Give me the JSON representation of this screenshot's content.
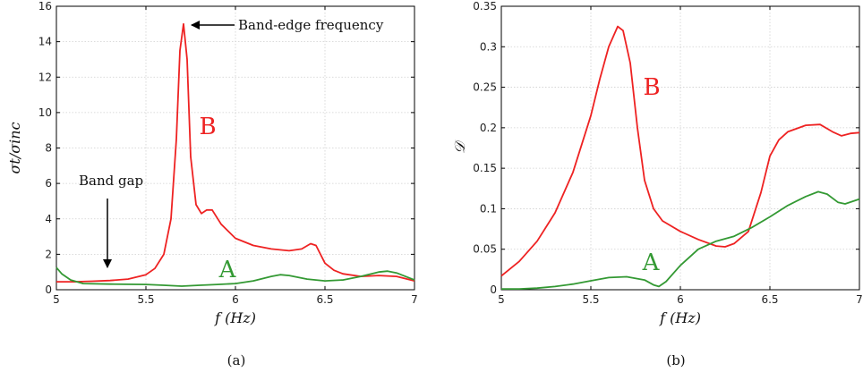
{
  "chart_data": [
    {
      "type": "line",
      "caption": "(a)",
      "xlabel": "f (Hz)",
      "ylabel": "σt/σinc",
      "xlim": [
        5,
        7
      ],
      "ylim": [
        0,
        16
      ],
      "xticks": [
        "5",
        "5.5",
        "6",
        "6.5",
        "7"
      ],
      "yticks": [
        "0",
        "2",
        "4",
        "6",
        "8",
        "10",
        "12",
        "14",
        "16"
      ],
      "grid": true,
      "series": [
        {
          "name": "B",
          "color": "#ee2222",
          "points": [
            [
              5.0,
              0.45
            ],
            [
              5.1,
              0.45
            ],
            [
              5.2,
              0.48
            ],
            [
              5.3,
              0.52
            ],
            [
              5.4,
              0.6
            ],
            [
              5.5,
              0.85
            ],
            [
              5.55,
              1.2
            ],
            [
              5.6,
              2.0
            ],
            [
              5.64,
              4.0
            ],
            [
              5.67,
              8.5
            ],
            [
              5.69,
              13.5
            ],
            [
              5.71,
              15.0
            ],
            [
              5.73,
              13.0
            ],
            [
              5.75,
              7.5
            ],
            [
              5.78,
              4.8
            ],
            [
              5.81,
              4.3
            ],
            [
              5.84,
              4.5
            ],
            [
              5.87,
              4.5
            ],
            [
              5.92,
              3.7
            ],
            [
              6.0,
              2.9
            ],
            [
              6.1,
              2.5
            ],
            [
              6.2,
              2.3
            ],
            [
              6.3,
              2.2
            ],
            [
              6.37,
              2.3
            ],
            [
              6.42,
              2.6
            ],
            [
              6.45,
              2.5
            ],
            [
              6.5,
              1.5
            ],
            [
              6.55,
              1.1
            ],
            [
              6.6,
              0.9
            ],
            [
              6.7,
              0.75
            ],
            [
              6.8,
              0.8
            ],
            [
              6.9,
              0.75
            ],
            [
              7.0,
              0.5
            ]
          ]
        },
        {
          "name": "A",
          "color": "#339933",
          "points": [
            [
              5.0,
              1.25
            ],
            [
              5.03,
              0.9
            ],
            [
              5.08,
              0.55
            ],
            [
              5.15,
              0.35
            ],
            [
              5.3,
              0.32
            ],
            [
              5.5,
              0.3
            ],
            [
              5.6,
              0.25
            ],
            [
              5.7,
              0.2
            ],
            [
              5.8,
              0.25
            ],
            [
              5.9,
              0.3
            ],
            [
              6.0,
              0.35
            ],
            [
              6.1,
              0.5
            ],
            [
              6.2,
              0.75
            ],
            [
              6.25,
              0.85
            ],
            [
              6.3,
              0.8
            ],
            [
              6.4,
              0.6
            ],
            [
              6.5,
              0.5
            ],
            [
              6.6,
              0.55
            ],
            [
              6.7,
              0.75
            ],
            [
              6.8,
              1.0
            ],
            [
              6.85,
              1.05
            ],
            [
              6.9,
              0.95
            ],
            [
              7.0,
              0.55
            ]
          ]
        }
      ],
      "annotations": {
        "band_edge": "Band-edge frequency",
        "band_gap": "Band gap",
        "label_a": "A",
        "label_b": "B"
      }
    },
    {
      "type": "line",
      "caption": "(b)",
      "xlabel": "f (Hz)",
      "ylabel": "𝒟",
      "xlim": [
        5,
        7
      ],
      "ylim": [
        0,
        0.35
      ],
      "xticks": [
        "5",
        "5.5",
        "6",
        "6.5",
        "7"
      ],
      "yticks": [
        "0",
        "0.05",
        "0.1",
        "0.15",
        "0.2",
        "0.25",
        "0.3",
        "0.35"
      ],
      "grid": true,
      "series": [
        {
          "name": "B",
          "color": "#ee2222",
          "points": [
            [
              5.0,
              0.017
            ],
            [
              5.1,
              0.035
            ],
            [
              5.2,
              0.06
            ],
            [
              5.3,
              0.095
            ],
            [
              5.4,
              0.145
            ],
            [
              5.5,
              0.215
            ],
            [
              5.55,
              0.26
            ],
            [
              5.6,
              0.3
            ],
            [
              5.65,
              0.325
            ],
            [
              5.68,
              0.32
            ],
            [
              5.72,
              0.28
            ],
            [
              5.76,
              0.2
            ],
            [
              5.8,
              0.135
            ],
            [
              5.85,
              0.1
            ],
            [
              5.9,
              0.085
            ],
            [
              6.0,
              0.072
            ],
            [
              6.1,
              0.062
            ],
            [
              6.2,
              0.054
            ],
            [
              6.25,
              0.053
            ],
            [
              6.3,
              0.057
            ],
            [
              6.38,
              0.072
            ],
            [
              6.45,
              0.12
            ],
            [
              6.5,
              0.165
            ],
            [
              6.55,
              0.185
            ],
            [
              6.6,
              0.195
            ],
            [
              6.7,
              0.203
            ],
            [
              6.78,
              0.204
            ],
            [
              6.85,
              0.195
            ],
            [
              6.9,
              0.19
            ],
            [
              6.95,
              0.193
            ],
            [
              7.0,
              0.194
            ]
          ]
        },
        {
          "name": "A",
          "color": "#339933",
          "points": [
            [
              5.0,
              0.001
            ],
            [
              5.1,
              0.001
            ],
            [
              5.2,
              0.002
            ],
            [
              5.3,
              0.004
            ],
            [
              5.4,
              0.007
            ],
            [
              5.5,
              0.011
            ],
            [
              5.6,
              0.015
            ],
            [
              5.7,
              0.016
            ],
            [
              5.8,
              0.012
            ],
            [
              5.85,
              0.006
            ],
            [
              5.88,
              0.004
            ],
            [
              5.92,
              0.01
            ],
            [
              6.0,
              0.03
            ],
            [
              6.1,
              0.05
            ],
            [
              6.2,
              0.06
            ],
            [
              6.3,
              0.066
            ],
            [
              6.4,
              0.077
            ],
            [
              6.5,
              0.09
            ],
            [
              6.6,
              0.104
            ],
            [
              6.7,
              0.115
            ],
            [
              6.77,
              0.121
            ],
            [
              6.82,
              0.118
            ],
            [
              6.88,
              0.108
            ],
            [
              6.92,
              0.106
            ],
            [
              7.0,
              0.112
            ]
          ]
        }
      ],
      "annotations": {
        "label_a": "A",
        "label_b": "B"
      }
    }
  ]
}
